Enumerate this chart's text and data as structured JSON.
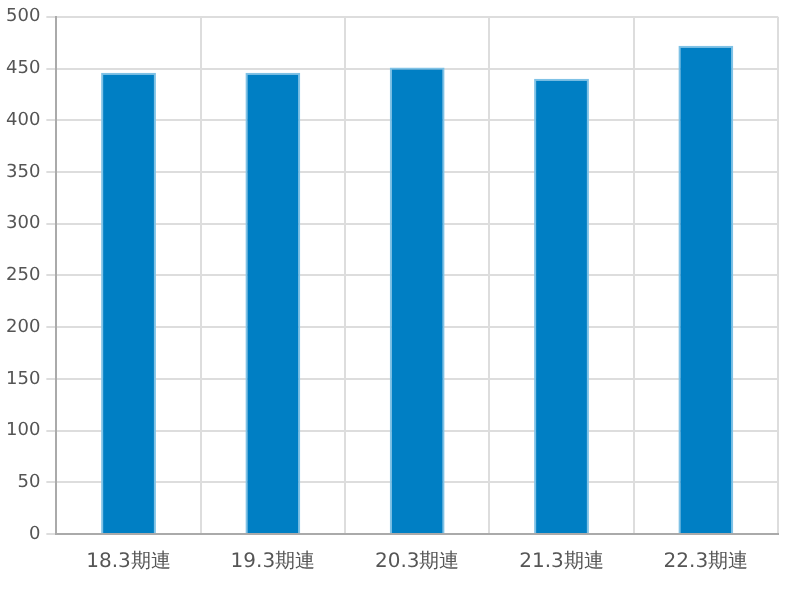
{
  "chart_data": {
    "type": "bar",
    "categories": [
      "18.3期連",
      "19.3期連",
      "20.3期連",
      "21.3期連",
      "22.3期連"
    ],
    "values": [
      446,
      446,
      451,
      440,
      472
    ],
    "color": "#007fc4",
    "ylim": [
      0,
      500
    ],
    "yticks": [
      0,
      50,
      100,
      150,
      200,
      250,
      300,
      350,
      400,
      450,
      500
    ],
    "grid": true,
    "legend": false
  }
}
